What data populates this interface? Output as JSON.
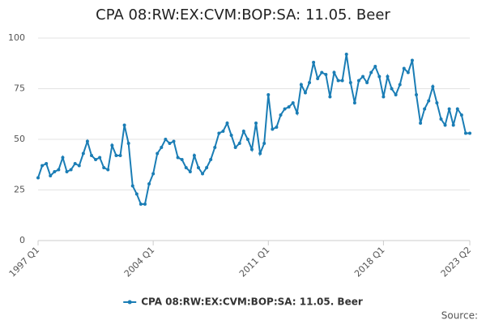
{
  "chart_data": {
    "type": "line",
    "title": "CPA 08:RW:EX:CVM:BOP:SA: 11.05. Beer",
    "categories": [
      "1997 Q1",
      null,
      null,
      null,
      null,
      null,
      null,
      null,
      null,
      null,
      null,
      null,
      null,
      null,
      null,
      null,
      null,
      null,
      null,
      null,
      null,
      null,
      null,
      null,
      null,
      null,
      null,
      null,
      "2004 Q1",
      null,
      null,
      null,
      null,
      null,
      null,
      null,
      null,
      null,
      null,
      null,
      null,
      null,
      null,
      null,
      null,
      null,
      null,
      null,
      null,
      null,
      null,
      null,
      null,
      null,
      null,
      null,
      "2011 Q1",
      null,
      null,
      null,
      null,
      null,
      null,
      null,
      null,
      null,
      null,
      null,
      null,
      null,
      null,
      null,
      null,
      null,
      null,
      null,
      null,
      null,
      null,
      null,
      null,
      null,
      null,
      null,
      "2018 Q1",
      null,
      null,
      null,
      null,
      null,
      null,
      null,
      null,
      null,
      null,
      null,
      null,
      null,
      null,
      null,
      null,
      null,
      null,
      null,
      null,
      "2023 Q2"
    ],
    "series": [
      {
        "name": "CPA 08:RW:EX:CVM:BOP:SA: 11.05. Beer",
        "color": "#1a7db5",
        "values": [
          31,
          37,
          38,
          32,
          34,
          35,
          41,
          34,
          35,
          38,
          37,
          43,
          49,
          42,
          40,
          41,
          36,
          35,
          47,
          42,
          42,
          57,
          48,
          27,
          23,
          18,
          18,
          28,
          33,
          43,
          46,
          50,
          48,
          49,
          41,
          40,
          36,
          34,
          42,
          36,
          33,
          36,
          40,
          46,
          53,
          54,
          58,
          52,
          46,
          48,
          54,
          50,
          45,
          58,
          43,
          48,
          72,
          55,
          56,
          62,
          65,
          66,
          68,
          63,
          77,
          73,
          78,
          88,
          80,
          83,
          82,
          71,
          83,
          79,
          79,
          92,
          78,
          68,
          79,
          81,
          78,
          83,
          86,
          81,
          71,
          81,
          75,
          72,
          77,
          85,
          83,
          89,
          72,
          58,
          65,
          69,
          76,
          68,
          60,
          57,
          65,
          57,
          65,
          62,
          53,
          53
        ]
      }
    ],
    "ylim": [
      0,
      100
    ],
    "yticks": [
      0,
      25,
      50,
      75,
      100
    ],
    "grid": true,
    "legend": "bottom",
    "source": "Source:"
  }
}
